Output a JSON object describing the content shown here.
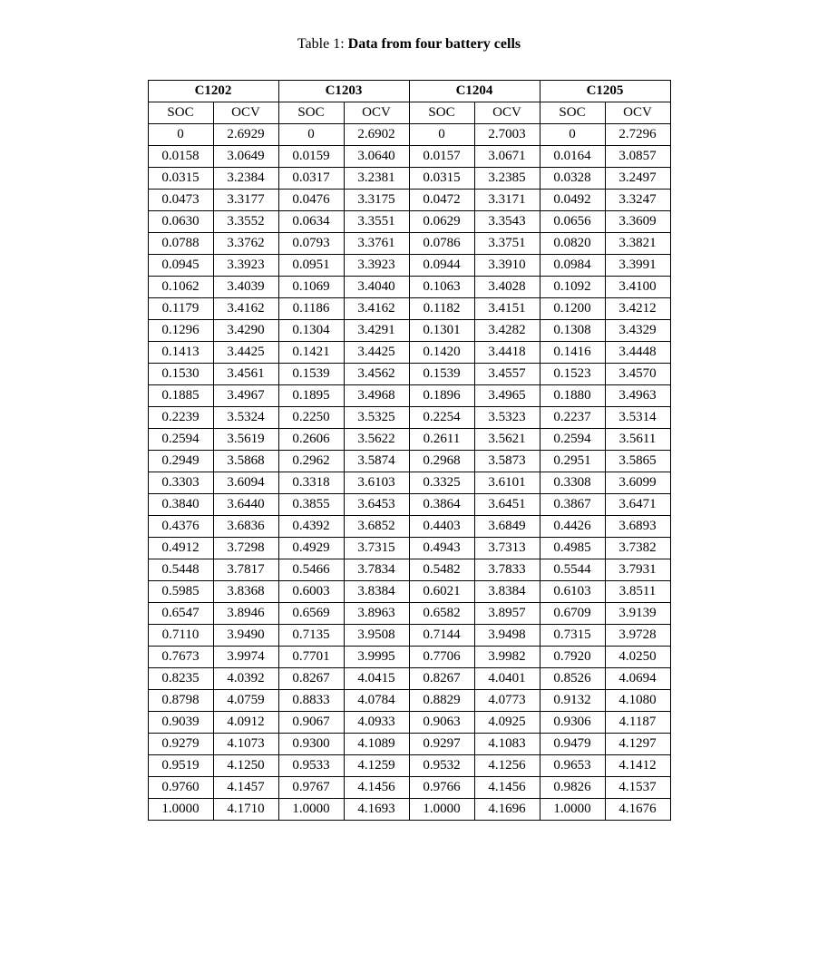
{
  "caption_label": "Table 1: ",
  "caption_title": "Data from four battery cells",
  "table": {
    "cells": [
      "C1202",
      "C1203",
      "C1204",
      "C1205"
    ],
    "sub_headers": [
      "SOC",
      "OCV"
    ],
    "rows": [
      [
        "0",
        "2.6929",
        "0",
        "2.6902",
        "0",
        "2.7003",
        "0",
        "2.7296"
      ],
      [
        "0.0158",
        "3.0649",
        "0.0159",
        "3.0640",
        "0.0157",
        "3.0671",
        "0.0164",
        "3.0857"
      ],
      [
        "0.0315",
        "3.2384",
        "0.0317",
        "3.2381",
        "0.0315",
        "3.2385",
        "0.0328",
        "3.2497"
      ],
      [
        "0.0473",
        "3.3177",
        "0.0476",
        "3.3175",
        "0.0472",
        "3.3171",
        "0.0492",
        "3.3247"
      ],
      [
        "0.0630",
        "3.3552",
        "0.0634",
        "3.3551",
        "0.0629",
        "3.3543",
        "0.0656",
        "3.3609"
      ],
      [
        "0.0788",
        "3.3762",
        "0.0793",
        "3.3761",
        "0.0786",
        "3.3751",
        "0.0820",
        "3.3821"
      ],
      [
        "0.0945",
        "3.3923",
        "0.0951",
        "3.3923",
        "0.0944",
        "3.3910",
        "0.0984",
        "3.3991"
      ],
      [
        "0.1062",
        "3.4039",
        "0.1069",
        "3.4040",
        "0.1063",
        "3.4028",
        "0.1092",
        "3.4100"
      ],
      [
        "0.1179",
        "3.4162",
        "0.1186",
        "3.4162",
        "0.1182",
        "3.4151",
        "0.1200",
        "3.4212"
      ],
      [
        "0.1296",
        "3.4290",
        "0.1304",
        "3.4291",
        "0.1301",
        "3.4282",
        "0.1308",
        "3.4329"
      ],
      [
        "0.1413",
        "3.4425",
        "0.1421",
        "3.4425",
        "0.1420",
        "3.4418",
        "0.1416",
        "3.4448"
      ],
      [
        "0.1530",
        "3.4561",
        "0.1539",
        "3.4562",
        "0.1539",
        "3.4557",
        "0.1523",
        "3.4570"
      ],
      [
        "0.1885",
        "3.4967",
        "0.1895",
        "3.4968",
        "0.1896",
        "3.4965",
        "0.1880",
        "3.4963"
      ],
      [
        "0.2239",
        "3.5324",
        "0.2250",
        "3.5325",
        "0.2254",
        "3.5323",
        "0.2237",
        "3.5314"
      ],
      [
        "0.2594",
        "3.5619",
        "0.2606",
        "3.5622",
        "0.2611",
        "3.5621",
        "0.2594",
        "3.5611"
      ],
      [
        "0.2949",
        "3.5868",
        "0.2962",
        "3.5874",
        "0.2968",
        "3.5873",
        "0.2951",
        "3.5865"
      ],
      [
        "0.3303",
        "3.6094",
        "0.3318",
        "3.6103",
        "0.3325",
        "3.6101",
        "0.3308",
        "3.6099"
      ],
      [
        "0.3840",
        "3.6440",
        "0.3855",
        "3.6453",
        "0.3864",
        "3.6451",
        "0.3867",
        "3.6471"
      ],
      [
        "0.4376",
        "3.6836",
        "0.4392",
        "3.6852",
        "0.4403",
        "3.6849",
        "0.4426",
        "3.6893"
      ],
      [
        "0.4912",
        "3.7298",
        "0.4929",
        "3.7315",
        "0.4943",
        "3.7313",
        "0.4985",
        "3.7382"
      ],
      [
        "0.5448",
        "3.7817",
        "0.5466",
        "3.7834",
        "0.5482",
        "3.7833",
        "0.5544",
        "3.7931"
      ],
      [
        "0.5985",
        "3.8368",
        "0.6003",
        "3.8384",
        "0.6021",
        "3.8384",
        "0.6103",
        "3.8511"
      ],
      [
        "0.6547",
        "3.8946",
        "0.6569",
        "3.8963",
        "0.6582",
        "3.8957",
        "0.6709",
        "3.9139"
      ],
      [
        "0.7110",
        "3.9490",
        "0.7135",
        "3.9508",
        "0.7144",
        "3.9498",
        "0.7315",
        "3.9728"
      ],
      [
        "0.7673",
        "3.9974",
        "0.7701",
        "3.9995",
        "0.7706",
        "3.9982",
        "0.7920",
        "4.0250"
      ],
      [
        "0.8235",
        "4.0392",
        "0.8267",
        "4.0415",
        "0.8267",
        "4.0401",
        "0.8526",
        "4.0694"
      ],
      [
        "0.8798",
        "4.0759",
        "0.8833",
        "4.0784",
        "0.8829",
        "4.0773",
        "0.9132",
        "4.1080"
      ],
      [
        "0.9039",
        "4.0912",
        "0.9067",
        "4.0933",
        "0.9063",
        "4.0925",
        "0.9306",
        "4.1187"
      ],
      [
        "0.9279",
        "4.1073",
        "0.9300",
        "4.1089",
        "0.9297",
        "4.1083",
        "0.9479",
        "4.1297"
      ],
      [
        "0.9519",
        "4.1250",
        "0.9533",
        "4.1259",
        "0.9532",
        "4.1256",
        "0.9653",
        "4.1412"
      ],
      [
        "0.9760",
        "4.1457",
        "0.9767",
        "4.1456",
        "0.9766",
        "4.1456",
        "0.9826",
        "4.1537"
      ],
      [
        "1.0000",
        "4.1710",
        "1.0000",
        "4.1693",
        "1.0000",
        "4.1696",
        "1.0000",
        "4.1676"
      ]
    ]
  },
  "style": {
    "font_family": "Times New Roman, Times, serif",
    "background_color": "#ffffff",
    "text_color": "#000000",
    "border_color": "#000000",
    "caption_fontsize": 16,
    "table_fontsize": 15
  }
}
